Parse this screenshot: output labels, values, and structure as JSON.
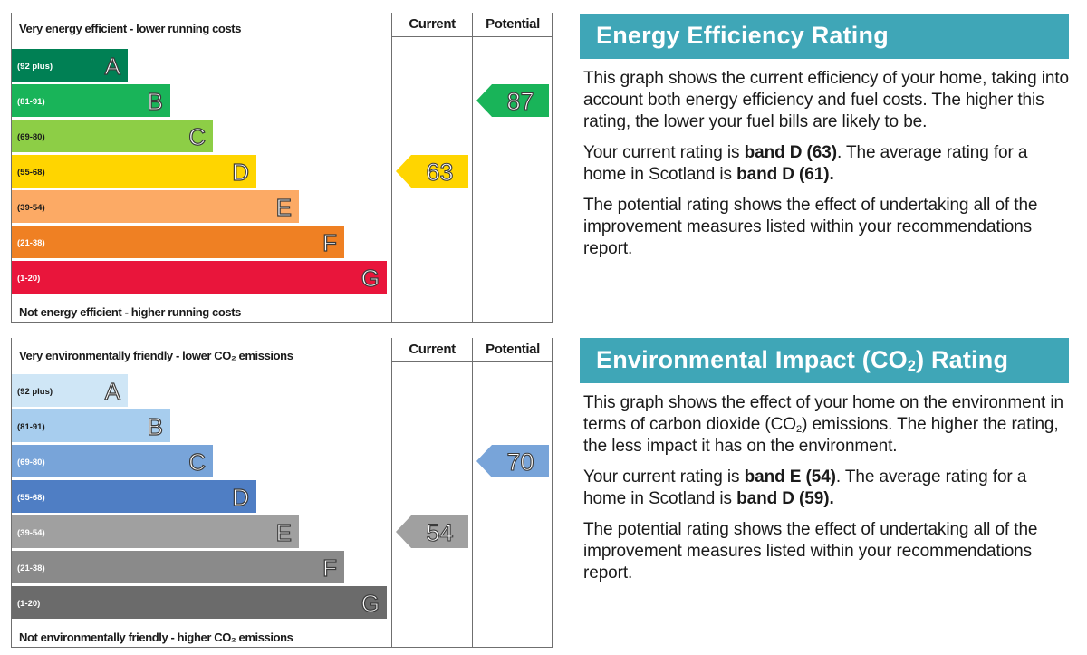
{
  "charts": [
    {
      "id": "energy",
      "scale_top": "Very energy efficient - lower running costs",
      "scale_bottom": "Not energy efficient - higher running costs",
      "col_current": "Current",
      "col_potential": "Potential",
      "chart_data": {
        "type": "bar",
        "categories": [
          "(92 plus)",
          "(81-91)",
          "(69-80)",
          "(55-68)",
          "(39-54)",
          "(21-38)",
          "(1-20)"
        ],
        "band_letters": [
          "A",
          "B",
          "C",
          "D",
          "E",
          "F",
          "G"
        ],
        "band_colors": [
          "#008054",
          "#19b459",
          "#8dce46",
          "#ffd500",
          "#fcaa65",
          "#ef8023",
          "#e9153b"
        ],
        "current": {
          "value": 63,
          "band": "D",
          "color": "#ffd500"
        },
        "potential": {
          "value": 87,
          "band": "B",
          "color": "#19b459"
        }
      }
    },
    {
      "id": "environmental",
      "scale_top": "Very environmentally friendly - lower CO₂ emissions",
      "scale_bottom": "Not environmentally friendly - higher CO₂ emissions",
      "col_current": "Current",
      "col_potential": "Potential",
      "chart_data": {
        "type": "bar",
        "categories": [
          "(92 plus)",
          "(81-91)",
          "(69-80)",
          "(55-68)",
          "(39-54)",
          "(21-38)",
          "(1-20)"
        ],
        "band_letters": [
          "A",
          "B",
          "C",
          "D",
          "E",
          "F",
          "G"
        ],
        "band_colors": [
          "#cfe6f6",
          "#a7cdee",
          "#78a4d9",
          "#4f7ec4",
          "#a0a0a0",
          "#8a8a8a",
          "#6b6b6b"
        ],
        "current": {
          "value": 54,
          "band": "E",
          "color": "#a0a0a0"
        },
        "potential": {
          "value": 70,
          "band": "C",
          "color": "#78a4d9"
        }
      }
    }
  ],
  "panels": [
    {
      "title": "Energy Efficiency Rating",
      "para1": "This graph shows the current efficiency of your home, taking into account both energy efficiency and fuel costs. The higher this rating, the lower your fuel bills are likely to be.",
      "para2_a": "Your current rating is ",
      "para2_b": "band D (63)",
      "para2_c": ". The average rating for a home in Scotland is ",
      "para2_d": "band D (61).",
      "para3": "The potential rating shows the effect of undertaking all of the improvement measures listed within your recommendations report."
    },
    {
      "title_a": "Environmental Impact (CO",
      "title_sub": "2",
      "title_b": ") Rating",
      "para1_a": "This graph shows the effect of your home on the environment in terms of carbon dioxide (CO",
      "para1_sub": "2",
      "para1_b": ") emissions. The higher the rating, the less impact it has on the environment.",
      "para2_a": "Your current rating is ",
      "para2_b": "band E (54)",
      "para2_c": ". The average rating for a home in Scotland is ",
      "para2_d": "band D (59).",
      "para3": "The potential rating shows the effect of undertaking all of the improvement measures listed within your recommendations report."
    }
  ]
}
